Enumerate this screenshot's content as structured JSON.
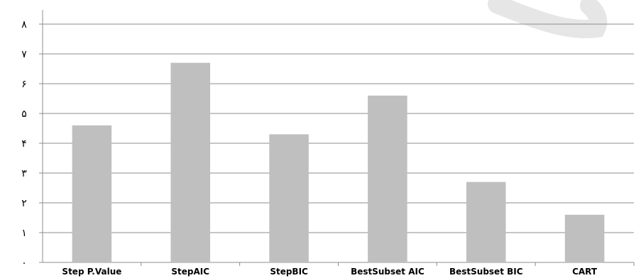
{
  "chart_data": {
    "type": "bar",
    "title": "",
    "xlabel": "",
    "ylabel": "",
    "categories": [
      "Step P.Value",
      "StepAIC",
      "StepBIC",
      "BestSubset AIC",
      "BestSubset BIC",
      "CART"
    ],
    "values": [
      4.6,
      6.7,
      4.3,
      5.6,
      2.7,
      1.6
    ],
    "ylim": [
      0,
      8
    ],
    "yticks": [
      0,
      1,
      2,
      3,
      4,
      5,
      6,
      7,
      8
    ],
    "ytick_labels": [
      "٠",
      "١",
      "٢",
      "٣",
      "۴",
      "۵",
      "۶",
      "٧",
      "٨"
    ],
    "grid": true,
    "legend": "none",
    "colors": {
      "bar": "#bfbfbf",
      "grid": "#8c8c8c",
      "axis": "#8c8c8c",
      "background": "#ffffff",
      "watermark": "#e6e6e6"
    }
  }
}
